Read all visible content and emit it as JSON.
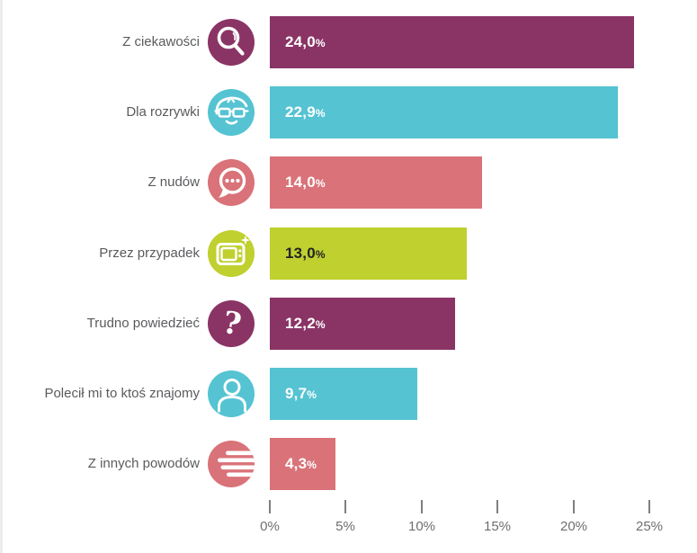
{
  "chart_data": {
    "type": "bar",
    "orientation": "horizontal",
    "title": "",
    "xlabel": "",
    "ylabel": "",
    "xlim": [
      0,
      25
    ],
    "x_tick_labels": [
      "0%",
      "5%",
      "10%",
      "15%",
      "20%",
      "25%"
    ],
    "x_tick_values": [
      0,
      5,
      10,
      15,
      20,
      25
    ],
    "grid": false,
    "legend": false,
    "categories": [
      "Z ciekawości",
      "Dla rozrywki",
      "Z nudów",
      "Przez przypadek",
      "Trudno powiedzieć",
      "Polecił mi to ktoś znajomy",
      "Z innych powodów"
    ],
    "values": [
      24.0,
      22.9,
      14.0,
      13.0,
      12.2,
      9.7,
      4.3
    ],
    "value_labels": [
      "24,0%",
      "22,9%",
      "14,0%",
      "13,0%",
      "12,2%",
      "9,7%",
      "4,3%"
    ]
  },
  "rows": [
    {
      "label": "Z ciekawości",
      "value": 24.0,
      "value_text": "24,0",
      "unit": "%",
      "icon": "search-icon",
      "color": "#8A3465",
      "label_color": "#FFFFFF"
    },
    {
      "label": "Dla rozrywki",
      "value": 22.9,
      "value_text": "22,9",
      "unit": "%",
      "icon": "face-with-glasses-icon",
      "color": "#55C3D2",
      "label_color": "#FFFFFF"
    },
    {
      "label": "Z nudów",
      "value": 14.0,
      "value_text": "14,0",
      "unit": "%",
      "icon": "chat-bubble-dots-icon",
      "color": "#D97379",
      "label_color": "#FFFFFF"
    },
    {
      "label": "Przez przypadek",
      "value": 13.0,
      "value_text": "13,0",
      "unit": "%",
      "icon": "tv-icon",
      "color": "#BFD02F",
      "label_color": "#242424"
    },
    {
      "label": "Trudno powiedzieć",
      "value": 12.2,
      "value_text": "12,2",
      "unit": "%",
      "icon": "question-mark-icon",
      "color": "#8A3465",
      "label_color": "#FFFFFF"
    },
    {
      "label": "Polecił mi to ktoś znajomy",
      "value": 9.7,
      "value_text": "9,7",
      "unit": "%",
      "icon": "person-icon",
      "color": "#55C3D2",
      "label_color": "#FFFFFF"
    },
    {
      "label": "Z innych powodów",
      "value": 4.3,
      "value_text": "4,3",
      "unit": "%",
      "icon": "list-lines-icon",
      "color": "#D97379",
      "label_color": "#FFFFFF"
    }
  ],
  "axis": {
    "tick_labels": [
      "0%",
      "5%",
      "10%",
      "15%",
      "20%",
      "25%"
    ]
  },
  "palette": {
    "purple": "#8A3465",
    "teal": "#55C3D2",
    "salmon": "#D97379",
    "lime": "#BFD02F",
    "category_text": "#5A5B5E",
    "axis_text": "#6D6E70",
    "tick": "#7F7F7F"
  }
}
